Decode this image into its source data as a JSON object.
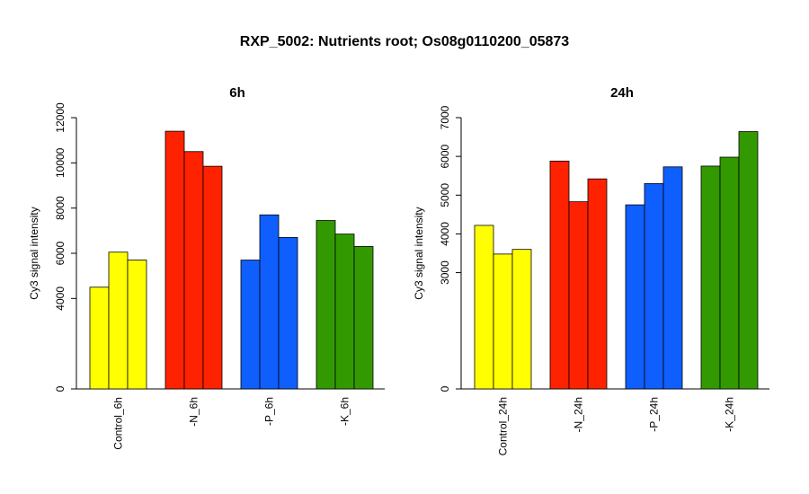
{
  "page_title": "RXP_5002: Nutrients root; Os08g0110200_05873",
  "colors": {
    "control": "#ffff00",
    "N": "#ff2200",
    "P": "#0f5fff",
    "K": "#339900"
  },
  "chart_data": [
    {
      "type": "bar",
      "title": "6h",
      "ylabel": "Cy3 signal intensity",
      "xlabel": "",
      "ylim": [
        0,
        12000
      ],
      "yticks": [
        0,
        4000,
        6000,
        8000,
        10000,
        12000
      ],
      "ytick_labels": [
        "0",
        "4000",
        "6000",
        "8000",
        "10000",
        "12000"
      ],
      "grid": false,
      "categories": [
        "Control_6h",
        "-N_6h",
        "-P_6h",
        "-K_6h"
      ],
      "groups": [
        {
          "category": "Control_6h",
          "color": "#ffff00",
          "values": [
            4500,
            6050,
            5700
          ]
        },
        {
          "category": "-N_6h",
          "color": "#ff2200",
          "values": [
            11400,
            10500,
            9850
          ]
        },
        {
          "category": "-P_6h",
          "color": "#0f5fff",
          "values": [
            5700,
            7700,
            6700
          ]
        },
        {
          "category": "-K_6h",
          "color": "#339900",
          "values": [
            7450,
            6850,
            6300
          ]
        }
      ]
    },
    {
      "type": "bar",
      "title": "24h",
      "ylabel": "Cy3 signal intensity",
      "xlabel": "",
      "ylim": [
        0,
        7000
      ],
      "yticks": [
        0,
        3000,
        4000,
        5000,
        6000,
        7000
      ],
      "ytick_labels": [
        "0",
        "3000",
        "4000",
        "5000",
        "6000",
        "7000"
      ],
      "grid": false,
      "categories": [
        "Control_24h",
        "-N_24h",
        "-P_24h",
        "-K_24h"
      ],
      "groups": [
        {
          "category": "Control_24h",
          "color": "#ffff00",
          "values": [
            4220,
            3480,
            3600
          ]
        },
        {
          "category": "-N_24h",
          "color": "#ff2200",
          "values": [
            5880,
            4830,
            5420
          ]
        },
        {
          "category": "-P_24h",
          "color": "#0f5fff",
          "values": [
            4750,
            5300,
            5730
          ]
        },
        {
          "category": "-K_24h",
          "color": "#339900",
          "values": [
            5750,
            5980,
            6640
          ]
        }
      ]
    }
  ]
}
